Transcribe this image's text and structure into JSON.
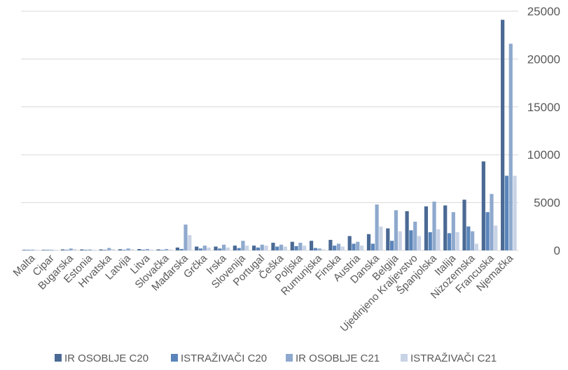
{
  "chart_data": {
    "type": "bar",
    "title": "",
    "xlabel": "",
    "ylabel": "",
    "ylim": [
      0,
      25000
    ],
    "y_ticks": [
      "0",
      "5000",
      "10000",
      "15000",
      "20000",
      "25000"
    ],
    "y_axis_side": "right",
    "grid": true,
    "legend_position": "bottom",
    "categories": [
      "Malta",
      "Cipar",
      "Bugarska",
      "Estonia",
      "Hrvatska",
      "Latvija",
      "Litva",
      "Slovačka",
      "Mađarska",
      "Grčka",
      "Irska",
      "Slovenija",
      "Portugal",
      "Češka",
      "Poljska",
      "Rumunjska",
      "Finska",
      "Austria",
      "Danska",
      "Belgija",
      "Ujedinjeno Kraljevstvo",
      "Španjolska",
      "Italija",
      "Nizozemska",
      "Francuska",
      "Njemačka"
    ],
    "series": [
      {
        "name": "IR OSOBLJE C20",
        "color": "#4a6a94",
        "values": [
          60,
          50,
          100,
          100,
          100,
          120,
          140,
          100,
          300,
          400,
          400,
          500,
          500,
          800,
          900,
          1000,
          1100,
          1500,
          1700,
          2300,
          4100,
          4600,
          4700,
          5300,
          9300,
          24100
        ]
      },
      {
        "name": "ISTRAŽIVAČI C20",
        "color": "#5b85ba",
        "values": [
          20,
          20,
          50,
          50,
          50,
          60,
          70,
          60,
          150,
          200,
          200,
          250,
          300,
          400,
          450,
          250,
          500,
          700,
          700,
          1000,
          2100,
          1900,
          1800,
          2500,
          4000,
          7800
        ]
      },
      {
        "name": "IR OSOBLJE C21",
        "color": "#8ea9cd",
        "values": [
          80,
          70,
          200,
          100,
          250,
          200,
          150,
          150,
          2700,
          500,
          600,
          1000,
          600,
          600,
          800,
          200,
          700,
          900,
          4800,
          4200,
          3000,
          5100,
          4000,
          2000,
          5900,
          21600
        ]
      },
      {
        "name": "ISTRAŽIVAČI C21",
        "color": "#c9d3e6",
        "values": [
          40,
          30,
          120,
          60,
          120,
          120,
          80,
          80,
          1600,
          300,
          300,
          500,
          500,
          400,
          500,
          100,
          400,
          500,
          2500,
          2000,
          1500,
          2200,
          1900,
          700,
          2600,
          7800
        ]
      }
    ]
  }
}
